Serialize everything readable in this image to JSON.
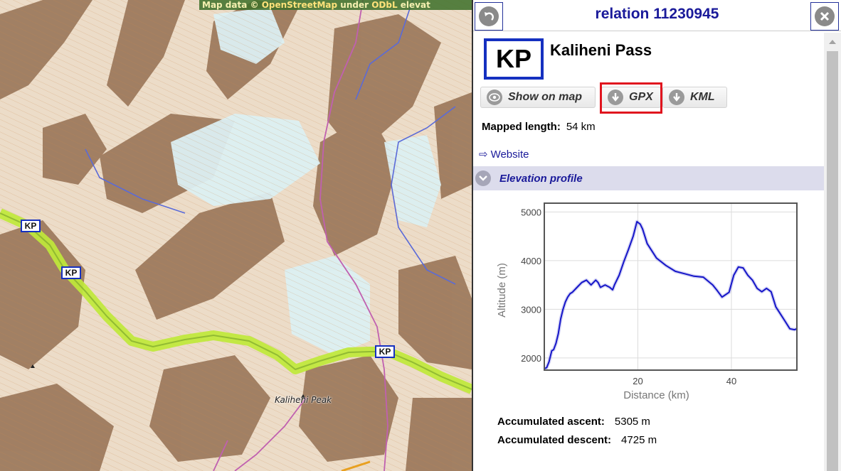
{
  "map": {
    "attribution_prefix": "Map data © ",
    "attribution_link1": "OpenStreetMap",
    "attribution_mid": " under ",
    "attribution_link2": "ODbL",
    "attribution_suffix": " elevat",
    "route_badges": [
      "KP",
      "KP",
      "KP"
    ],
    "peak_label": "Kaliheni Peak",
    "colors": {
      "route": "#bfe83a",
      "track": "#c060b0",
      "river": "#5a6ad8"
    }
  },
  "panel": {
    "title": "relation 11230945",
    "back_icon": "back-arrow-icon",
    "close_icon": "close-icon",
    "badge": "KP",
    "route_name": "Kaliheni Pass",
    "buttons": {
      "show_on_map": "Show on map",
      "gpx": "GPX",
      "kml": "KML"
    },
    "mapped_length_label": "Mapped length:",
    "mapped_length_value": "54 km",
    "website_label": "Website",
    "elevation_section": "Elevation profile",
    "accumulated_ascent_label": "Accumulated ascent:",
    "accumulated_ascent_value": "5305 m",
    "accumulated_descent_label": "Accumulated descent:",
    "accumulated_descent_value": "4725 m",
    "colors": {
      "title": "#1a1a9a",
      "badge_border": "#1530c0",
      "highlight": "#e0141e"
    }
  },
  "chart_data": {
    "type": "line",
    "title": "",
    "xlabel": "Distance (km)",
    "ylabel": "Altitude (m)",
    "xlim": [
      0,
      54
    ],
    "ylim": [
      1750,
      5180
    ],
    "xticks": [
      20,
      40
    ],
    "yticks": [
      2000,
      3000,
      4000,
      5000
    ],
    "grid": true,
    "series": [
      {
        "color": "#1515c8",
        "x": [
          0,
          0.5,
          1,
          1.6,
          2,
          2.5,
          3,
          3.5,
          4,
          4.5,
          5,
          5.5,
          6,
          7,
          8,
          9,
          10,
          11,
          11.5,
          12,
          13,
          14,
          14.6,
          15,
          16,
          17,
          18,
          19,
          19.8,
          20.5,
          21,
          22,
          24,
          26,
          28,
          30,
          32,
          34,
          36,
          37,
          38,
          39.5,
          40.5,
          41.5,
          42.5,
          43.5,
          44.5,
          45.5,
          46.5,
          47.5,
          48.5,
          49.5,
          50.5,
          51.5,
          52.5,
          53.5,
          54
        ],
        "y": [
          1780,
          1800,
          1920,
          2150,
          2170,
          2300,
          2500,
          2800,
          3000,
          3150,
          3250,
          3320,
          3350,
          3450,
          3550,
          3600,
          3500,
          3600,
          3550,
          3450,
          3500,
          3450,
          3400,
          3500,
          3700,
          3980,
          4230,
          4500,
          4800,
          4750,
          4650,
          4350,
          4050,
          3900,
          3780,
          3730,
          3680,
          3660,
          3500,
          3380,
          3250,
          3350,
          3700,
          3870,
          3850,
          3700,
          3600,
          3430,
          3360,
          3430,
          3360,
          3050,
          2900,
          2750,
          2600,
          2580,
          2600
        ]
      }
    ]
  }
}
